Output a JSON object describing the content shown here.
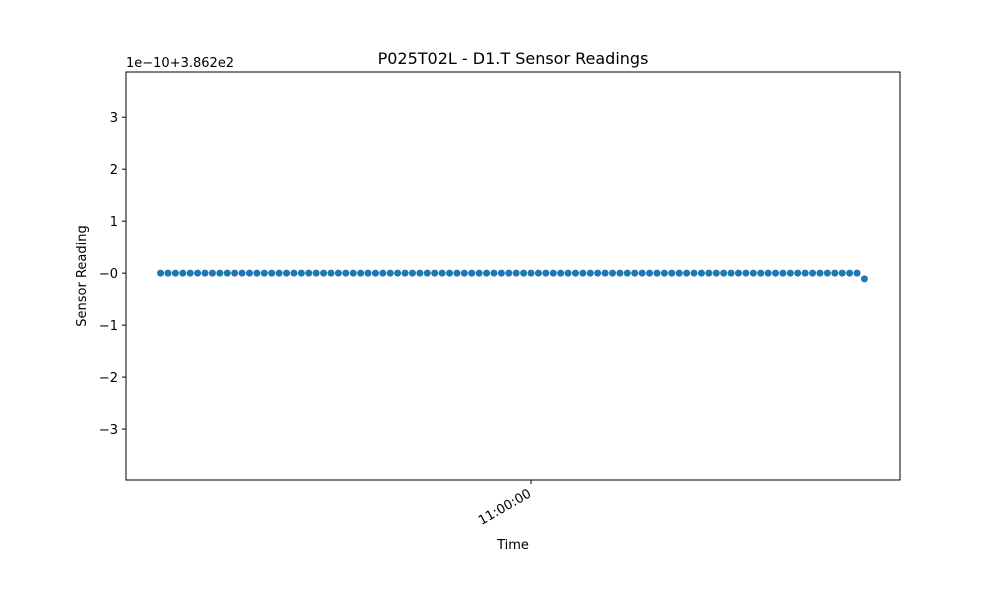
{
  "chart_data": {
    "type": "scatter",
    "title": "P025T02L - D1.T Sensor Readings",
    "x_label": "Time",
    "y_label": "Sensor Reading",
    "y_offset_label": "1e−10+3.862e2",
    "series": [
      {
        "color": "#1f77b4",
        "x": [
          "10:35:00",
          "10:35:30",
          "10:36:00",
          "10:36:30",
          "10:37:00",
          "10:37:30",
          "10:38:00",
          "10:38:30",
          "10:39:00",
          "10:39:30",
          "10:40:00",
          "10:40:30",
          "10:41:00",
          "10:41:30",
          "10:42:00",
          "10:42:30",
          "10:43:00",
          "10:43:30",
          "10:44:00",
          "10:44:30",
          "10:45:00",
          "10:45:30",
          "10:46:00",
          "10:46:30",
          "10:47:00",
          "10:47:30",
          "10:48:00",
          "10:48:30",
          "10:49:00",
          "10:49:30",
          "10:50:00",
          "10:50:30",
          "10:51:00",
          "10:51:30",
          "10:52:00",
          "10:52:30",
          "10:53:00",
          "10:53:30",
          "10:54:00",
          "10:54:30",
          "10:55:00",
          "10:55:30",
          "10:56:00",
          "10:56:30",
          "10:57:00",
          "10:57:30",
          "10:58:00",
          "10:58:30",
          "10:59:00",
          "10:59:30",
          "11:00:00",
          "11:00:30",
          "11:01:00",
          "11:01:30",
          "11:02:00",
          "11:02:30",
          "11:03:00",
          "11:03:30",
          "11:04:00",
          "11:04:30",
          "11:05:00",
          "11:05:30",
          "11:06:00",
          "11:06:30",
          "11:07:00",
          "11:07:30",
          "11:08:00",
          "11:08:30",
          "11:09:00",
          "11:09:30",
          "11:10:00",
          "11:10:30",
          "11:11:00",
          "11:11:30",
          "11:12:00",
          "11:12:30",
          "11:13:00",
          "11:13:30",
          "11:14:00",
          "11:14:30",
          "11:15:00",
          "11:15:30",
          "11:16:00",
          "11:16:30",
          "11:17:00",
          "11:17:30",
          "11:18:00",
          "11:18:30",
          "11:19:00",
          "11:19:30",
          "11:20:00",
          "11:20:30",
          "11:21:00",
          "11:21:30",
          "11:22:00",
          "11:22:30"
        ],
        "values": [
          0,
          0,
          0,
          0,
          0,
          0,
          0,
          0,
          0,
          0,
          0,
          0,
          0,
          0,
          0,
          0,
          0,
          0,
          0,
          0,
          0,
          0,
          0,
          0,
          0,
          0,
          0,
          0,
          0,
          0,
          0,
          0,
          0,
          0,
          0,
          0,
          0,
          0,
          0,
          0,
          0,
          0,
          0,
          0,
          0,
          0,
          0,
          0,
          0,
          0,
          0,
          0,
          0,
          0,
          0,
          0,
          0,
          0,
          0,
          0,
          0,
          0,
          0,
          0,
          0,
          0,
          0,
          0,
          0,
          0,
          0,
          0,
          0,
          0,
          0,
          0,
          0,
          0,
          0,
          0,
          0,
          0,
          0,
          0,
          0,
          0,
          0,
          0,
          0,
          0,
          0,
          0,
          0,
          0,
          0,
          -0.11
        ]
      }
    ],
    "xlim": [
      "10:32:40",
      "11:24:54"
    ],
    "xticks": [
      "11:00:00"
    ],
    "ylim": [
      -3.98,
      3.87
    ],
    "yticks": [
      {
        "value": -3,
        "label": "−3"
      },
      {
        "value": -2,
        "label": "−2"
      },
      {
        "value": -1,
        "label": "−1"
      },
      {
        "value": 0,
        "label": "−0"
      },
      1,
      2,
      3
    ],
    "grid": false
  }
}
